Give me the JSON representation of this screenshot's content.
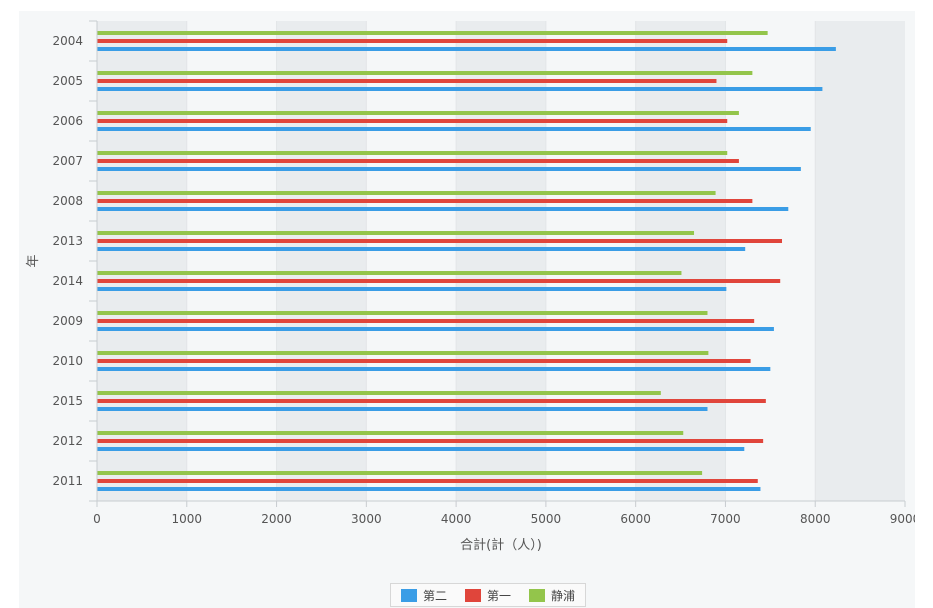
{
  "chart_data": {
    "type": "bar",
    "orientation": "horizontal",
    "categories": [
      "2004",
      "2005",
      "2006",
      "2007",
      "2008",
      "2013",
      "2014",
      "2009",
      "2010",
      "2015",
      "2012",
      "2011"
    ],
    "series": [
      {
        "name": "第二",
        "color": "#3a9de6",
        "values": [
          8230,
          8080,
          7950,
          7840,
          7700,
          7220,
          7010,
          7540,
          7500,
          6800,
          7210,
          7390
        ]
      },
      {
        "name": "第一",
        "color": "#e0453b",
        "values": [
          7020,
          6900,
          7020,
          7150,
          7300,
          7630,
          7610,
          7320,
          7280,
          7450,
          7420,
          7360
        ]
      },
      {
        "name": "静浦",
        "color": "#93c54b",
        "values": [
          7470,
          7300,
          7150,
          7020,
          6890,
          6650,
          6510,
          6800,
          6810,
          6280,
          6530,
          6740
        ]
      }
    ],
    "xlabel": "合計(計（人）)",
    "ylabel": "年",
    "xlim": [
      0,
      9000
    ],
    "xticks": [
      "0",
      "1000",
      "2000",
      "3000",
      "4000",
      "5000",
      "6000",
      "7000",
      "8000",
      "9000"
    ],
    "grid": "alternating vertical bands",
    "legend": "bottom-center"
  }
}
